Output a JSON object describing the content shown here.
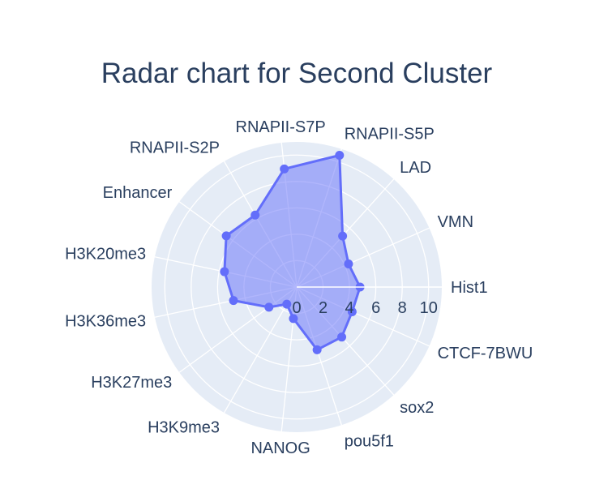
{
  "chart_data": {
    "type": "radar",
    "title": "Radar chart for Second Cluster",
    "categories": [
      "Hist1",
      "VMN",
      "LAD",
      "RNAPII-S5P",
      "RNAPII-S7P",
      "RNAPII-S2P",
      "Enhancer",
      "H3K20me3",
      "H3K36me3",
      "H3K27me3",
      "H3K9me3",
      "NANOG",
      "pou5f1",
      "sox2",
      "CTCF-7BWU"
    ],
    "series": [
      {
        "values": [
          4.8,
          4.3,
          5.2,
          10.5,
          9.0,
          6.3,
          6.6,
          5.6,
          4.9,
          2.6,
          1.5,
          2.4,
          5.0,
          5.1,
          4.6
        ],
        "color": "#636efa",
        "fill": "rgba(99,110,250,0.5)"
      }
    ],
    "radial_range": [
      0,
      11
    ],
    "radial_ticks": [
      "0",
      "2",
      "4",
      "6",
      "8",
      "10"
    ],
    "radial_tick_values": [
      0,
      2,
      4,
      6,
      8,
      10
    ],
    "grid": true,
    "background_color": "#e5ecf6"
  }
}
